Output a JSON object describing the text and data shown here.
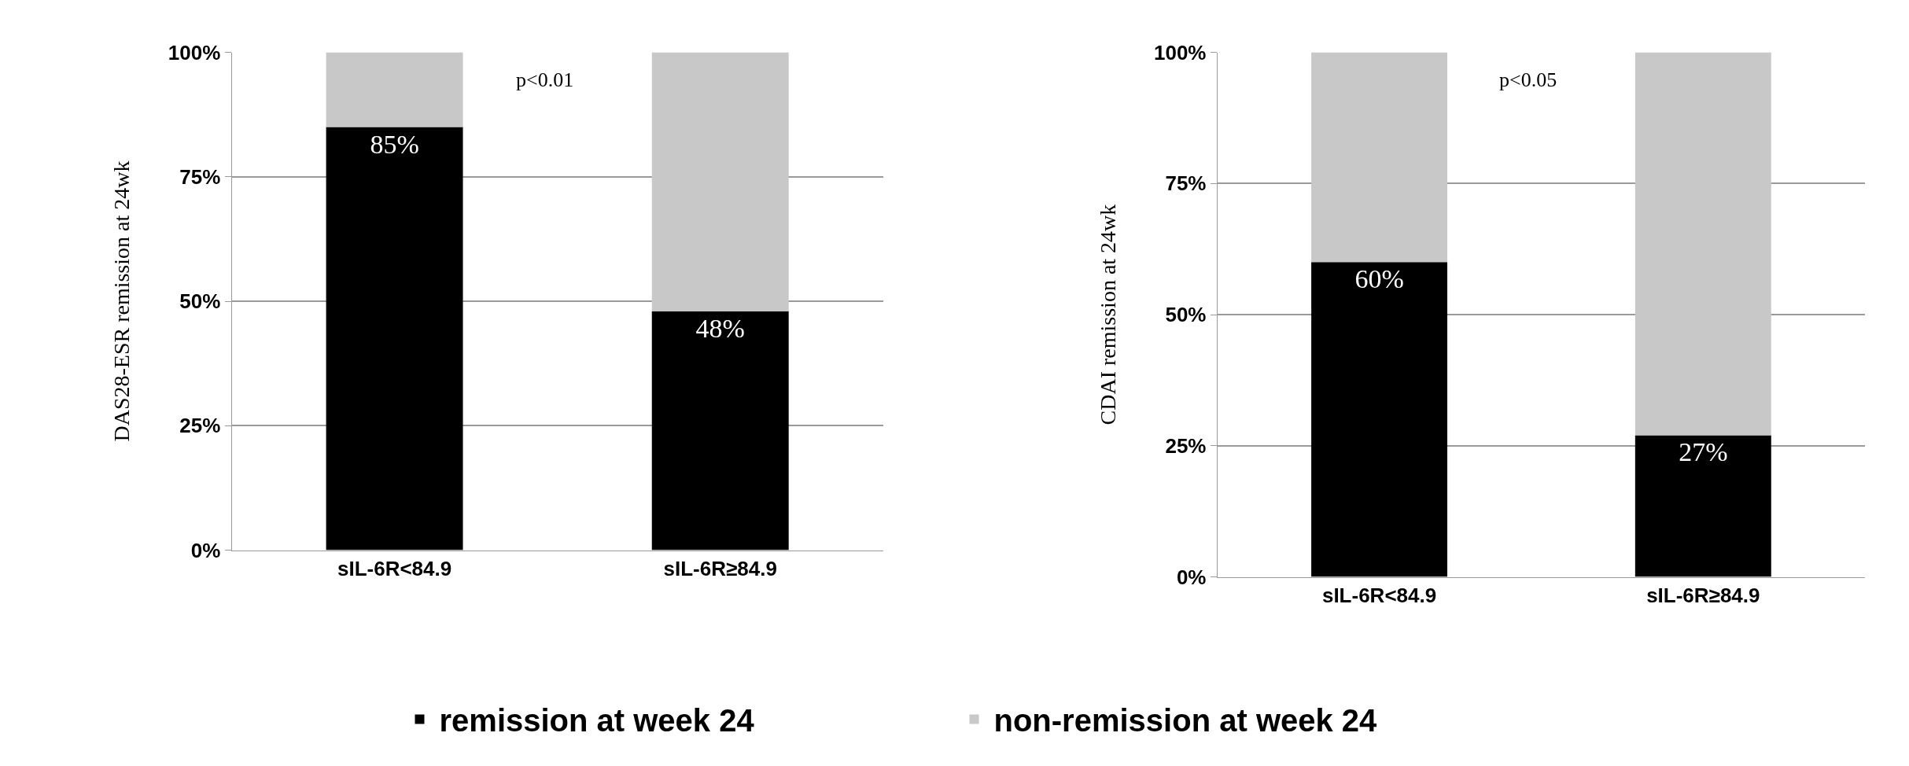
{
  "chart_data": [
    {
      "type": "bar",
      "stacked": true,
      "ylabel": "DAS28-ESR remission at 24wk",
      "categories": [
        "sIL-6R<84.9",
        "sIL-6R≥84.9"
      ],
      "series": [
        {
          "name": "remission at week 24",
          "color": "#000000",
          "values": [
            85,
            48
          ],
          "value_labels": [
            "85%",
            "48%"
          ]
        },
        {
          "name": "non-remission at week 24",
          "color": "#c8c8c8",
          "values": [
            15,
            52
          ]
        }
      ],
      "ylim": [
        0,
        100
      ],
      "yticks": [
        {
          "value": 0,
          "label": "0%"
        },
        {
          "value": 25,
          "label": "25%"
        },
        {
          "value": 50,
          "label": "50%"
        },
        {
          "value": 75,
          "label": "75%"
        },
        {
          "value": 100,
          "label": "100%"
        }
      ],
      "grid": "y",
      "legend": "bottom",
      "annotations": [
        "p<0.01"
      ]
    },
    {
      "type": "bar",
      "stacked": true,
      "ylabel": "CDAI remission at 24wk",
      "categories": [
        "sIL-6R<84.9",
        "sIL-6R≥84.9"
      ],
      "series": [
        {
          "name": "remission at week 24",
          "color": "#000000",
          "values": [
            60,
            27
          ],
          "value_labels": [
            "60%",
            "27%"
          ]
        },
        {
          "name": "non-remission at week 24",
          "color": "#c8c8c8",
          "values": [
            40,
            73
          ]
        }
      ],
      "ylim": [
        0,
        100
      ],
      "yticks": [
        {
          "value": 0,
          "label": "0%"
        },
        {
          "value": 25,
          "label": "25%"
        },
        {
          "value": 50,
          "label": "50%"
        },
        {
          "value": 75,
          "label": "75%"
        },
        {
          "value": 100,
          "label": "100%"
        }
      ],
      "grid": "y",
      "legend": "bottom",
      "annotations": [
        "p<0.05"
      ]
    }
  ]
}
